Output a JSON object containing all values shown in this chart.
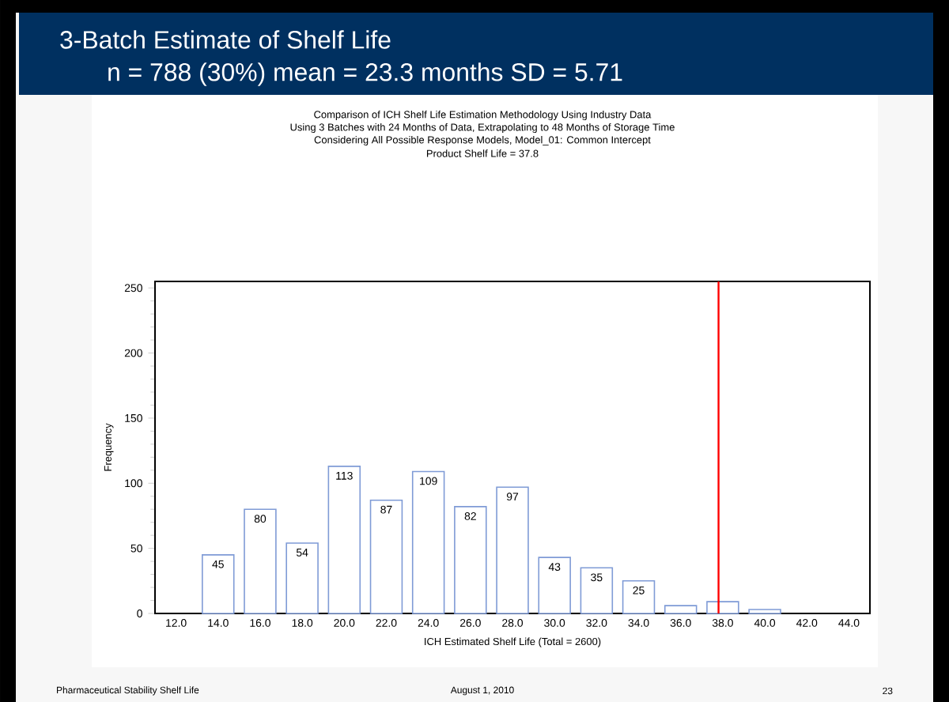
{
  "chart_data": {
    "type": "histogram",
    "title": "3-Batch Estimate of Shelf Life",
    "subtitle": "n = 788 (30%)      mean = 23.3 months      SD = 5.71",
    "xlabel": "ICH Estimated Shelf Life (Total = 2600)",
    "ylabel": "Frequency",
    "annotations": [
      "Comparison of ICH Shelf Life Estimation Methodology Using Industry Data",
      "Using 3 Batches with 24 Months of Data, Extrapolating to 48 Months of Storage Time",
      "Considering All Possible Response Models, Model_01: Common Intercept",
      "Product Shelf Life = 37.8",
      "Pharmaceutical Stability Shelf Life",
      "August 1, 2010",
      "23"
    ],
    "bins": [
      13,
      15,
      17,
      19,
      21,
      23,
      25,
      27,
      29,
      31,
      33,
      35,
      37,
      39,
      41
    ],
    "values": [
      45,
      80,
      54,
      113,
      87,
      109,
      82,
      97,
      43,
      35,
      25,
      6,
      9,
      3
    ],
    "value_labels": [
      "45",
      "80",
      "54",
      "113",
      "87",
      "109",
      "82",
      "97",
      "43",
      "35",
      "25",
      null,
      null,
      null
    ],
    "color": "#7f9bd6",
    "xlim": [
      11,
      45
    ],
    "xticks": [
      {
        "value": 12,
        "label": "12.0"
      },
      {
        "value": 14,
        "label": "14.0"
      },
      {
        "value": 16,
        "label": "16.0"
      },
      {
        "value": 18,
        "label": "18.0"
      },
      {
        "value": 20,
        "label": "20.0"
      },
      {
        "value": 22,
        "label": "22.0"
      },
      {
        "value": 24,
        "label": "24.0"
      },
      {
        "value": 26,
        "label": "26.0"
      },
      {
        "value": 28,
        "label": "28.0"
      },
      {
        "value": 30,
        "label": "30.0"
      },
      {
        "value": 32,
        "label": "32.0"
      },
      {
        "value": 34,
        "label": "34.0"
      },
      {
        "value": 36,
        "label": "36.0"
      },
      {
        "value": 38,
        "label": "38.0"
      },
      {
        "value": 40,
        "label": "40.0"
      },
      {
        "value": 42,
        "label": "42.0"
      },
      {
        "value": 44,
        "label": "44.0"
      }
    ],
    "ylim": [
      0,
      255
    ],
    "yticks": [
      0,
      50,
      100,
      150,
      200,
      250
    ],
    "ref_lines": [
      {
        "axis": "x",
        "value": 37.8,
        "color": "#ff0000"
      }
    ]
  }
}
